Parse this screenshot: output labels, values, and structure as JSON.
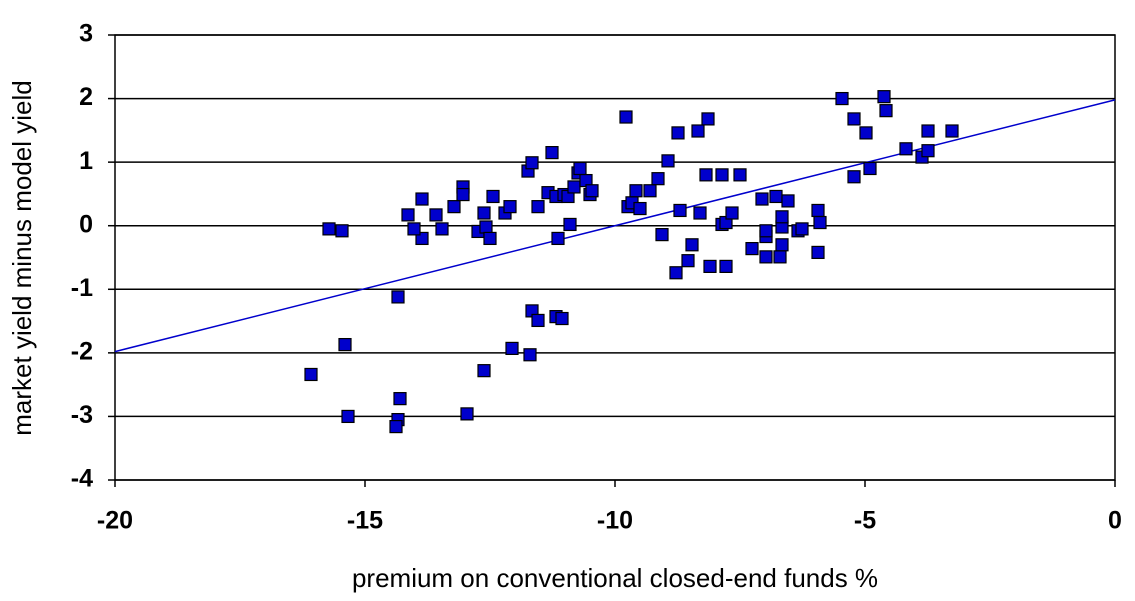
{
  "chart_data": {
    "type": "scatter",
    "xlabel": "premium on conventional closed-end funds %",
    "ylabel": "market yield minus model yield",
    "xlim": [
      -20,
      0
    ],
    "xticks": [
      -20,
      -15,
      -10,
      -5,
      0
    ],
    "ylim": [
      -4,
      3
    ],
    "yticks": [
      -4,
      -3,
      -2,
      -1,
      0,
      1,
      2,
      3
    ],
    "grid": true,
    "series": [
      {
        "color": "#0000cc",
        "marker": "square",
        "x": [
          -16.08,
          -15.72,
          -15.46,
          -15.4,
          -15.34,
          -14.34,
          -14.3,
          -14.34,
          -14.38,
          -13.86,
          -13.86,
          -14.14,
          -14.02,
          -13.58,
          -13.46,
          -13.22,
          -13.04,
          -13.04,
          -12.96,
          -12.74,
          -12.62,
          -12.58,
          -12.5,
          -12.44,
          -12.62,
          -12.2,
          -12.1,
          -12.06,
          -11.74,
          -11.66,
          -11.7,
          -11.66,
          -11.54,
          -11.54,
          -11.34,
          -11.26,
          -11.18,
          -11.14,
          -11.18,
          -11.06,
          -11.02,
          -10.94,
          -10.9,
          -10.82,
          -10.74,
          -10.7,
          -10.58,
          -10.5,
          -10.46,
          -9.78,
          -9.74,
          -9.66,
          -9.58,
          -9.5,
          -9.3,
          -9.14,
          -9.06,
          -8.94,
          -8.78,
          -8.74,
          -8.7,
          -8.54,
          -8.46,
          -8.34,
          -8.3,
          -8.18,
          -8.14,
          -8.1,
          -7.86,
          -7.86,
          -7.78,
          -7.78,
          -7.66,
          -7.5,
          -7.26,
          -7.06,
          -6.98,
          -6.98,
          -6.98,
          -6.78,
          -6.7,
          -6.66,
          -6.66,
          -6.66,
          -6.54,
          -6.34,
          -6.26,
          -5.94,
          -5.9,
          -5.94,
          -5.46,
          -5.22,
          -5.22,
          -4.98,
          -4.9,
          -4.62,
          -4.58,
          -4.18,
          -3.86,
          -3.74,
          -3.74,
          -3.26
        ],
        "values": [
          -2.34,
          -0.05,
          -0.08,
          -1.87,
          -3.0,
          -1.12,
          -2.72,
          -3.05,
          -3.16,
          0.42,
          -0.2,
          0.17,
          -0.05,
          0.17,
          -0.05,
          0.3,
          0.61,
          0.49,
          -2.96,
          -0.09,
          0.2,
          -0.02,
          -0.2,
          0.46,
          -2.28,
          0.2,
          0.3,
          -1.93,
          0.86,
          0.99,
          -2.03,
          -1.34,
          0.3,
          -1.49,
          0.52,
          1.15,
          0.46,
          -0.2,
          -1.43,
          -1.46,
          0.49,
          0.46,
          0.02,
          0.61,
          0.83,
          0.9,
          0.71,
          0.49,
          0.55,
          1.71,
          0.3,
          0.36,
          0.55,
          0.27,
          0.55,
          0.74,
          -0.14,
          1.02,
          -0.74,
          1.46,
          0.24,
          -0.55,
          -0.3,
          1.49,
          0.2,
          0.8,
          1.68,
          -0.64,
          0.8,
          0.02,
          -0.64,
          0.05,
          0.2,
          0.8,
          -0.36,
          0.42,
          -0.17,
          -0.49,
          -0.08,
          0.46,
          -0.49,
          -0.3,
          -0.02,
          0.14,
          0.39,
          -0.08,
          -0.05,
          0.24,
          0.05,
          -0.42,
          2.0,
          1.68,
          0.77,
          1.46,
          0.9,
          2.03,
          1.81,
          1.21,
          1.08,
          1.18,
          1.49,
          1.49
        ]
      }
    ],
    "trendline": {
      "color": "#0000cc",
      "x": [
        -20,
        0
      ],
      "values": [
        -1.98,
        1.98
      ]
    }
  }
}
